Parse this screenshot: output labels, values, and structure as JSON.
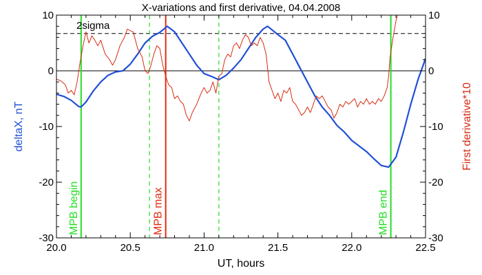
{
  "chart_data": {
    "type": "line",
    "title": "X-variations and first derivative, 04.04.2008",
    "xlabel": "UT, hours",
    "ylabel_left": "deltaX, nT",
    "ylabel_right": "First derivative*10",
    "xlim": [
      20.0,
      22.5
    ],
    "ylim": [
      -30,
      10
    ],
    "xticks": [
      20.0,
      20.5,
      21.0,
      21.5,
      22.0,
      22.5
    ],
    "xtick_labels": [
      "20.0",
      "20.5",
      "21.0",
      "21.5",
      "22.0",
      "22.5"
    ],
    "yticks": [
      -30,
      -20,
      -10,
      0,
      10
    ],
    "ytick_labels_left": [
      "-30",
      "-20",
      "-10",
      "0",
      "10"
    ],
    "ytick_labels_right": [
      "-30",
      "-20",
      "-10",
      "0",
      "10"
    ],
    "grid": false,
    "sigma_level": 6.7,
    "sigma_label": "2sigma",
    "zero_line": 0,
    "colors": {
      "deltaX": "#1f4fd6",
      "derivative": "#d62b10",
      "mpb_boundary": "#22dd22",
      "mpb_max": "#e02a10",
      "axes": "#000000"
    },
    "series": [
      {
        "key": "deltaX",
        "values": [
          [
            20.0,
            -4.2
          ],
          [
            20.05,
            -4.6
          ],
          [
            20.1,
            -5.3
          ],
          [
            20.15,
            -6.4
          ],
          [
            20.167,
            -6.5
          ],
          [
            20.2,
            -5.6
          ],
          [
            20.25,
            -3.6
          ],
          [
            20.3,
            -2.0
          ],
          [
            20.35,
            -0.8
          ],
          [
            20.4,
            -0.2
          ],
          [
            20.45,
            0.0
          ],
          [
            20.5,
            1.2
          ],
          [
            20.55,
            3.0
          ],
          [
            20.6,
            5.0
          ],
          [
            20.65,
            6.2
          ],
          [
            20.7,
            6.9
          ],
          [
            20.75,
            8.0
          ],
          [
            20.8,
            7.0
          ],
          [
            20.85,
            5.0
          ],
          [
            20.9,
            3.0
          ],
          [
            20.95,
            1.0
          ],
          [
            21.0,
            -0.5
          ],
          [
            21.05,
            -1.0
          ],
          [
            21.1,
            -1.6
          ],
          [
            21.15,
            -0.8
          ],
          [
            21.2,
            0.5
          ],
          [
            21.25,
            2.0
          ],
          [
            21.3,
            4.0
          ],
          [
            21.35,
            6.0
          ],
          [
            21.4,
            7.5
          ],
          [
            21.43,
            8.0
          ],
          [
            21.5,
            6.5
          ],
          [
            21.55,
            5.5
          ],
          [
            21.6,
            3.0
          ],
          [
            21.65,
            0.5
          ],
          [
            21.7,
            -2.0
          ],
          [
            21.75,
            -4.5
          ],
          [
            21.8,
            -6.5
          ],
          [
            21.85,
            -8.0
          ],
          [
            21.9,
            -9.8
          ],
          [
            21.95,
            -11.0
          ],
          [
            22.0,
            -12.5
          ],
          [
            22.05,
            -13.5
          ],
          [
            22.1,
            -14.5
          ],
          [
            22.15,
            -15.8
          ],
          [
            22.2,
            -17.0
          ],
          [
            22.25,
            -17.3
          ],
          [
            22.3,
            -15.5
          ],
          [
            22.35,
            -11.0
          ],
          [
            22.4,
            -6.0
          ],
          [
            22.45,
            -1.5
          ],
          [
            22.5,
            2.2
          ]
        ]
      },
      {
        "key": "derivative",
        "values": [
          [
            20.0,
            -1.5
          ],
          [
            20.03,
            -1.8
          ],
          [
            20.06,
            -2.5
          ],
          [
            20.08,
            -4.0
          ],
          [
            20.1,
            -3.5
          ],
          [
            20.12,
            -4.3
          ],
          [
            20.14,
            -2.0
          ],
          [
            20.16,
            1.5
          ],
          [
            20.18,
            4.5
          ],
          [
            20.2,
            7.0
          ],
          [
            20.22,
            5.0
          ],
          [
            20.24,
            6.3
          ],
          [
            20.26,
            5.5
          ],
          [
            20.28,
            4.5
          ],
          [
            20.3,
            5.5
          ],
          [
            20.33,
            3.0
          ],
          [
            20.36,
            2.0
          ],
          [
            20.38,
            1.0
          ],
          [
            20.4,
            2.0
          ],
          [
            20.43,
            4.5
          ],
          [
            20.46,
            6.0
          ],
          [
            20.48,
            7.5
          ],
          [
            20.5,
            7.2
          ],
          [
            20.52,
            7.0
          ],
          [
            20.55,
            4.0
          ],
          [
            20.58,
            2.5
          ],
          [
            20.6,
            0.0
          ],
          [
            20.62,
            -0.5
          ],
          [
            20.64,
            1.0
          ],
          [
            20.66,
            3.0
          ],
          [
            20.68,
            4.5
          ],
          [
            20.7,
            4.0
          ],
          [
            20.72,
            1.0
          ],
          [
            20.74,
            -1.0
          ],
          [
            20.76,
            -2.5
          ],
          [
            20.78,
            -3.0
          ],
          [
            20.8,
            -5.0
          ],
          [
            20.82,
            -4.5
          ],
          [
            20.84,
            -5.5
          ],
          [
            20.86,
            -6.0
          ],
          [
            20.88,
            -8.0
          ],
          [
            20.9,
            -9.0
          ],
          [
            20.92,
            -7.5
          ],
          [
            20.95,
            -6.0
          ],
          [
            20.98,
            -4.0
          ],
          [
            21.0,
            -3.0
          ],
          [
            21.02,
            -4.0
          ],
          [
            21.04,
            -3.5
          ],
          [
            21.06,
            -2.0
          ],
          [
            21.08,
            -4.0
          ],
          [
            21.1,
            -1.0
          ],
          [
            21.12,
            -0.5
          ],
          [
            21.14,
            2.0
          ],
          [
            21.16,
            3.0
          ],
          [
            21.18,
            2.5
          ],
          [
            21.2,
            4.5
          ],
          [
            21.22,
            5.0
          ],
          [
            21.24,
            4.0
          ],
          [
            21.26,
            5.5
          ],
          [
            21.28,
            6.5
          ],
          [
            21.3,
            6.0
          ],
          [
            21.32,
            4.5
          ],
          [
            21.34,
            5.0
          ],
          [
            21.36,
            4.5
          ],
          [
            21.38,
            6.0
          ],
          [
            21.4,
            5.0
          ],
          [
            21.42,
            3.0
          ],
          [
            21.44,
            -2.0
          ],
          [
            21.46,
            -3.5
          ],
          [
            21.48,
            -5.0
          ],
          [
            21.5,
            -4.0
          ],
          [
            21.52,
            -5.5
          ],
          [
            21.54,
            -3.5
          ],
          [
            21.56,
            -4.0
          ],
          [
            21.58,
            -3.0
          ],
          [
            21.6,
            -5.5
          ],
          [
            21.62,
            -6.0
          ],
          [
            21.64,
            -7.0
          ],
          [
            21.66,
            -8.0
          ],
          [
            21.68,
            -7.5
          ],
          [
            21.7,
            -6.5
          ],
          [
            21.72,
            -7.5
          ],
          [
            21.74,
            -6.0
          ],
          [
            21.76,
            -4.5
          ],
          [
            21.78,
            -5.0
          ],
          [
            21.8,
            -4.5
          ],
          [
            21.82,
            -5.5
          ],
          [
            21.84,
            -6.5
          ],
          [
            21.86,
            -7.0
          ],
          [
            21.88,
            -8.5
          ],
          [
            21.9,
            -7.5
          ],
          [
            21.92,
            -6.0
          ],
          [
            21.94,
            -6.5
          ],
          [
            21.96,
            -5.5
          ],
          [
            21.98,
            -6.0
          ],
          [
            22.0,
            -5.5
          ],
          [
            22.02,
            -5.0
          ],
          [
            22.04,
            -6.5
          ],
          [
            22.06,
            -5.5
          ],
          [
            22.08,
            -6.0
          ],
          [
            22.1,
            -5.0
          ],
          [
            22.12,
            -6.0
          ],
          [
            22.14,
            -5.5
          ],
          [
            22.16,
            -6.0
          ],
          [
            22.18,
            -5.0
          ],
          [
            22.2,
            -5.5
          ],
          [
            22.22,
            -4.5
          ],
          [
            22.24,
            -3.0
          ],
          [
            22.25,
            -1.0
          ],
          [
            22.26,
            2.5
          ],
          [
            22.28,
            6.0
          ],
          [
            22.3,
            9.0
          ],
          [
            22.32,
            11.0
          ],
          [
            22.35,
            14.0
          ]
        ]
      }
    ],
    "markers": [
      {
        "x": 20.167,
        "label": "MPB begin",
        "style": "solid",
        "color_key": "mpb_boundary"
      },
      {
        "x": 20.63,
        "label": "",
        "style": "dashed",
        "color_key": "mpb_boundary"
      },
      {
        "x": 20.74,
        "label": "MPB max",
        "style": "solid",
        "color_key": "mpb_max"
      },
      {
        "x": 21.1,
        "label": "",
        "style": "dashed",
        "color_key": "mpb_boundary"
      },
      {
        "x": 22.265,
        "label": "MPB end",
        "style": "solid",
        "color_key": "mpb_boundary"
      }
    ]
  }
}
